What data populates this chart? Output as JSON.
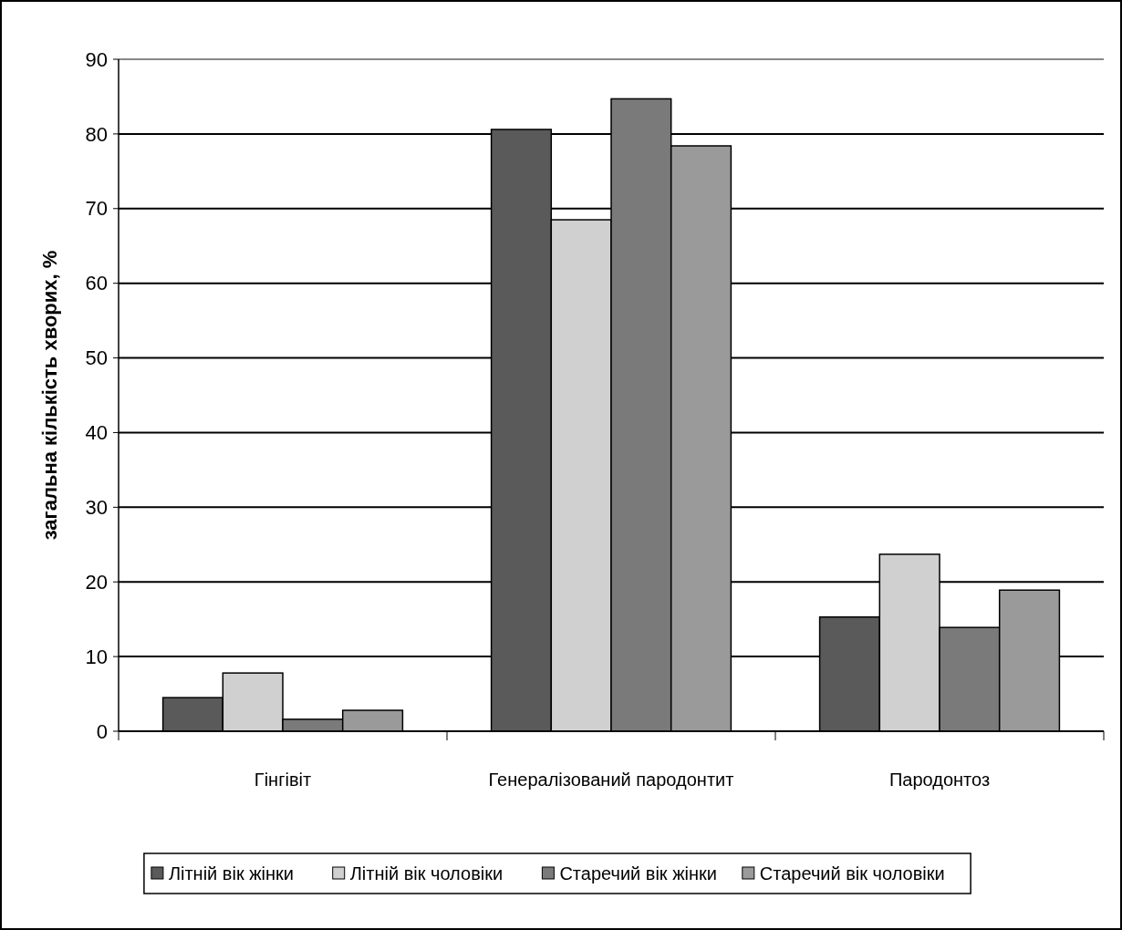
{
  "chart_data": {
    "type": "bar",
    "ylabel": "загальна кількість хворих, %",
    "categories": [
      "Гінгівіт",
      "Генералізований пародонтит",
      "Пародонтоз"
    ],
    "series": [
      {
        "name": "Літній вік жінки",
        "color": "#5a5a5a",
        "values": [
          4.5,
          80.6,
          15.3
        ]
      },
      {
        "name": "Літній вік чоловіки",
        "color": "#d0d0d0",
        "values": [
          7.8,
          68.5,
          23.7
        ]
      },
      {
        "name": "Старечий вік жінки",
        "color": "#7a7a7a",
        "values": [
          1.6,
          84.7,
          13.9
        ]
      },
      {
        "name": "Старечий вік чоловіки",
        "color": "#9a9a9a",
        "values": [
          2.8,
          78.4,
          18.9
        ]
      }
    ],
    "ylim": [
      0,
      90
    ],
    "yticks": [
      0,
      10,
      20,
      30,
      40,
      50,
      60,
      70,
      80,
      90
    ],
    "grid": "y",
    "legend": "bottom"
  }
}
